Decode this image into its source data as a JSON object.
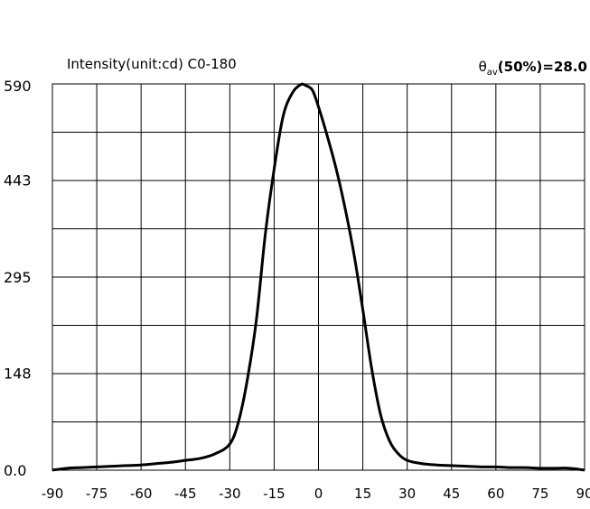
{
  "chart_data": {
    "type": "line",
    "title": "Intensity(unit:cd) C0-180",
    "annotation": {
      "symbol": "θ",
      "subscript": "av",
      "text": "(50%)=28.0"
    },
    "xlim": [
      -90,
      90
    ],
    "ylim": [
      0,
      590
    ],
    "x_ticks": [
      "-90",
      "-75",
      "-60",
      "-45",
      "-30",
      "-15",
      "0",
      "15",
      "30",
      "45",
      "60",
      "75",
      "90"
    ],
    "y_ticks": [
      "0.0",
      "148",
      "295",
      "443",
      "590"
    ],
    "grid": true,
    "series": [
      {
        "color": "#000000",
        "x": [
          -90,
          -85,
          -80,
          -75,
          -70,
          -65,
          -60,
          -55,
          -50,
          -45,
          -40,
          -35,
          -30,
          -27,
          -24,
          -21,
          -18,
          -15,
          -12,
          -9,
          -6,
          -4,
          -2,
          0,
          3,
          6,
          9,
          12,
          15,
          18,
          21,
          24,
          27,
          30,
          35,
          40,
          45,
          50,
          55,
          60,
          65,
          70,
          75,
          80,
          85,
          90
        ],
        "y": [
          0,
          3,
          4,
          5,
          6,
          7,
          8,
          10,
          12,
          15,
          18,
          25,
          40,
          75,
          140,
          230,
          360,
          460,
          540,
          575,
          589,
          587,
          580,
          555,
          510,
          460,
          400,
          330,
          245,
          155,
          85,
          45,
          25,
          15,
          10,
          8,
          7,
          6,
          5,
          5,
          4,
          4,
          3,
          3,
          3,
          0
        ]
      }
    ]
  }
}
